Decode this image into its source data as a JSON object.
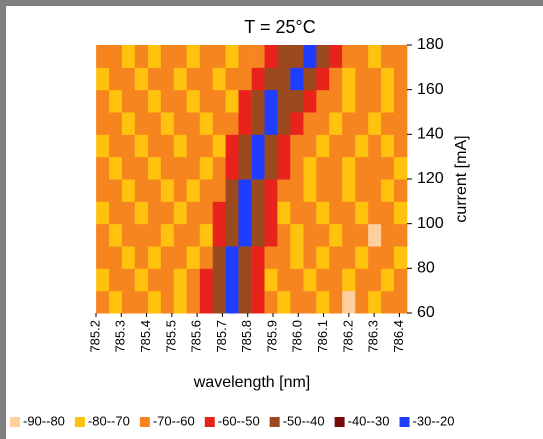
{
  "chart_data": {
    "type": "heatmap",
    "title": "T = 25°C",
    "x_label": "wavelength [nm]",
    "y_label": "current [mA]",
    "xlim": [
      785.2,
      786.43
    ],
    "ylim": [
      60,
      180
    ],
    "xticks": [
      {
        "value": 785.2,
        "label": "785.2"
      },
      785.3,
      785.4,
      785.5,
      785.6,
      785.7,
      785.8,
      785.9,
      {
        "value": 786.0,
        "label": "786.0"
      },
      786.1,
      786.2,
      786.3,
      786.4
    ],
    "yticks": [
      60,
      80,
      100,
      120,
      140,
      160,
      180
    ],
    "x": [
      785.226,
      785.277,
      785.328,
      785.379,
      785.431,
      785.482,
      785.533,
      785.584,
      785.636,
      785.687,
      785.738,
      785.789,
      785.841,
      785.892,
      785.943,
      785.994,
      786.046,
      786.097,
      786.148,
      786.199,
      786.251,
      786.302,
      786.353,
      786.404
    ],
    "y": [
      65,
      75,
      85,
      95,
      105,
      115,
      125,
      135,
      145,
      155,
      165,
      175
    ],
    "levels": [
      -90,
      -80,
      -70,
      -60,
      -50,
      -40,
      -30,
      -20
    ],
    "legend": [
      {
        "label": "-90--80",
        "color": "#ffcf9e"
      },
      {
        "label": "-80--70",
        "color": "#ffc20e"
      },
      {
        "label": "-70--60",
        "color": "#f7851f"
      },
      {
        "label": "-60--50",
        "color": "#e8231c"
      },
      {
        "label": "-50--40",
        "color": "#9b4a1f"
      },
      {
        "label": "-40--30",
        "color": "#7a0a0a"
      },
      {
        "label": "-30--20",
        "color": "#1f3dff"
      }
    ],
    "z": [
      [
        -65,
        -75,
        -65,
        -65,
        -75,
        -65,
        -75,
        -65,
        -55,
        -45,
        -25,
        -45,
        -55,
        -65,
        -75,
        -65,
        -65,
        -75,
        -65,
        -85,
        -65,
        -75,
        -65,
        -65
      ],
      [
        -75,
        -65,
        -65,
        -75,
        -65,
        -65,
        -75,
        -65,
        -55,
        -45,
        -25,
        -45,
        -55,
        -75,
        -65,
        -65,
        -75,
        -65,
        -65,
        -75,
        -65,
        -65,
        -75,
        -65
      ],
      [
        -65,
        -65,
        -75,
        -65,
        -75,
        -65,
        -65,
        -75,
        -65,
        -45,
        -25,
        -45,
        -55,
        -65,
        -65,
        -75,
        -65,
        -75,
        -65,
        -65,
        -75,
        -65,
        -65,
        -75
      ],
      [
        -65,
        -75,
        -65,
        -65,
        -65,
        -75,
        -65,
        -65,
        -75,
        -55,
        -45,
        -25,
        -45,
        -55,
        -65,
        -75,
        -65,
        -65,
        -75,
        -65,
        -65,
        -85,
        -65,
        -65
      ],
      [
        -75,
        -65,
        -65,
        -75,
        -65,
        -65,
        -75,
        -65,
        -65,
        -55,
        -45,
        -25,
        -45,
        -55,
        -75,
        -65,
        -65,
        -75,
        -65,
        -65,
        -75,
        -65,
        -65,
        -75
      ],
      [
        -65,
        -65,
        -75,
        -65,
        -65,
        -75,
        -65,
        -75,
        -65,
        -65,
        -45,
        -25,
        -45,
        -55,
        -65,
        -65,
        -75,
        -65,
        -65,
        -75,
        -65,
        -65,
        -75,
        -65
      ],
      [
        -65,
        -75,
        -65,
        -65,
        -75,
        -65,
        -65,
        -65,
        -75,
        -65,
        -55,
        -45,
        -25,
        -45,
        -55,
        -65,
        -75,
        -65,
        -65,
        -75,
        -65,
        -65,
        -65,
        -75
      ],
      [
        -75,
        -65,
        -65,
        -75,
        -65,
        -65,
        -75,
        -65,
        -65,
        -75,
        -55,
        -45,
        -25,
        -45,
        -55,
        -65,
        -65,
        -75,
        -65,
        -65,
        -75,
        -65,
        -75,
        -65
      ],
      [
        -65,
        -65,
        -75,
        -65,
        -65,
        -75,
        -65,
        -65,
        -75,
        -65,
        -65,
        -55,
        -45,
        -25,
        -45,
        -55,
        -65,
        -65,
        -75,
        -65,
        -65,
        -75,
        -65,
        -65
      ],
      [
        -65,
        -75,
        -65,
        -65,
        -75,
        -65,
        -65,
        -75,
        -65,
        -65,
        -75,
        -55,
        -45,
        -25,
        -45,
        -45,
        -55,
        -65,
        -65,
        -75,
        -65,
        -65,
        -75,
        -65
      ],
      [
        -75,
        -65,
        -65,
        -75,
        -65,
        -65,
        -75,
        -65,
        -65,
        -75,
        -65,
        -65,
        -55,
        -45,
        -45,
        -25,
        -45,
        -55,
        -65,
        -75,
        -65,
        -65,
        -75,
        -65
      ],
      [
        -65,
        -65,
        -75,
        -65,
        -75,
        -65,
        -65,
        -75,
        -65,
        -65,
        -75,
        -65,
        -65,
        -55,
        -45,
        -45,
        -25,
        -45,
        -55,
        -65,
        -65,
        -75,
        -65,
        -65
      ]
    ]
  }
}
